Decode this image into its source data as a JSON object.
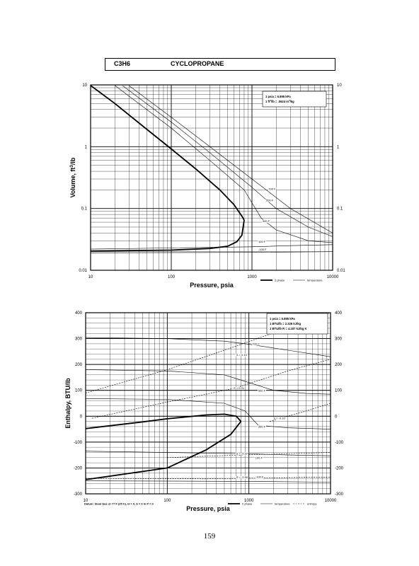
{
  "header": {
    "formula": "C3H6",
    "name": "CYCLOPROPANE"
  },
  "page_number": "159",
  "chart_data": [
    {
      "type": "line",
      "x_scale": "log",
      "y_scale": "log",
      "xlim": [
        10,
        10000
      ],
      "ylim": [
        0.01,
        10
      ],
      "xlabel": "Pressure,  psia",
      "ylabel": "Volume, ft^3/lb",
      "x_ticks": [
        {
          "value": 10,
          "label": "10"
        },
        {
          "value": 100,
          "label": "100"
        },
        {
          "value": 1000,
          "label": "1000"
        },
        {
          "value": 10000,
          "label": "10000"
        }
      ],
      "y_ticks": [
        {
          "value": 10,
          "label": "10"
        },
        {
          "value": 1,
          "label": "1"
        },
        {
          "value": 0.1,
          "label": "0.1"
        },
        {
          "value": 0.01,
          "label": "0.01"
        }
      ],
      "grid": true,
      "conversion_box": [
        "1 psia  =  6.895 kPa",
        "1 ft^3/lb  =  .0624 m^3/kg"
      ],
      "legend": {
        "position": "below-right",
        "items": [
          "2 phase",
          "temperature"
        ]
      },
      "two_phase": {
        "vapor": [
          [
            10,
            9.8
          ],
          [
            20,
            5.0
          ],
          [
            50,
            1.9
          ],
          [
            100,
            0.92
          ],
          [
            200,
            0.44
          ],
          [
            400,
            0.2
          ],
          [
            600,
            0.115
          ],
          [
            750,
            0.075
          ],
          [
            800,
            0.065
          ]
        ],
        "liquid": [
          [
            10,
            0.0205
          ],
          [
            100,
            0.0212
          ],
          [
            300,
            0.0225
          ],
          [
            500,
            0.0245
          ],
          [
            650,
            0.029
          ],
          [
            750,
            0.037
          ],
          [
            800,
            0.065
          ]
        ]
      },
      "isotherms": [
        {
          "label": "700 F",
          "label_at": [
            1600,
            0.2
          ],
          "points": [
            [
              30,
              9.7
            ],
            [
              100,
              3.0
            ],
            [
              300,
              1.0
            ],
            [
              1000,
              0.3
            ],
            [
              3000,
              0.1
            ],
            [
              10000,
              0.04
            ]
          ]
        },
        {
          "label": "500 F",
          "label_at": [
            1500,
            0.13
          ],
          "points": [
            [
              25,
              9.7
            ],
            [
              100,
              2.5
            ],
            [
              300,
              0.8
            ],
            [
              1000,
              0.22
            ],
            [
              2000,
              0.1
            ],
            [
              5000,
              0.05
            ],
            [
              10000,
              0.035
            ]
          ]
        },
        {
          "label": "300 F",
          "label_at": [
            1350,
            0.06
          ],
          "points": [
            [
              20,
              9.8
            ],
            [
              100,
              2.0
            ],
            [
              300,
              0.6
            ],
            [
              800,
              0.2
            ],
            [
              1300,
              0.07
            ],
            [
              2000,
              0.045
            ],
            [
              5000,
              0.03
            ],
            [
              10000,
              0.028
            ]
          ]
        },
        {
          "label": "100 F",
          "label_at": [
            1200,
            0.028
          ],
          "points": [
            [
              10,
              0.022
            ],
            [
              1000,
              0.024
            ],
            [
              3000,
              0.025
            ],
            [
              10000,
              0.026
            ]
          ]
        },
        {
          "label": "-100 F",
          "label_at": [
            1200,
            0.021
          ],
          "points": [
            [
              10,
              0.0192
            ],
            [
              1000,
              0.0195
            ],
            [
              10000,
              0.02
            ]
          ]
        }
      ]
    },
    {
      "type": "line",
      "x_scale": "log",
      "y_scale": "linear",
      "xlim": [
        10,
        10000
      ],
      "ylim": [
        -300,
        400
      ],
      "xlabel": "Pressure,  psia",
      "ylabel": "Enthalpy, BTU/lb",
      "x_ticks": [
        {
          "value": 10,
          "label": "10"
        },
        {
          "value": 100,
          "label": "100"
        },
        {
          "value": 1000,
          "label": "1000"
        },
        {
          "value": 10000,
          "label": "10000"
        }
      ],
      "y_ticks": [
        {
          "value": 400,
          "label": "400"
        },
        {
          "value": 300,
          "label": "300"
        },
        {
          "value": 200,
          "label": "200"
        },
        {
          "value": 100,
          "label": "100"
        },
        {
          "value": 0,
          "label": "0"
        },
        {
          "value": -100,
          "label": "-100"
        },
        {
          "value": -200,
          "label": "-200"
        },
        {
          "value": -300,
          "label": "-300"
        }
      ],
      "grid": true,
      "conversion_box": [
        "1 psia  =  6.895 kPa",
        "1 BTU/lb  =  2.326 kJ/kg",
        "1 BTU/lb R  =  4.187 kJ/kg K"
      ],
      "legend": {
        "position": "below-right",
        "items": [
          "2 phase",
          "temperature",
          "entropy"
        ]
      },
      "footnote": "Datum: Ideal Gas @ 77 F (25 C),  H = 0,  S = 0 in P = 0",
      "two_phase": {
        "vapor": [
          [
            10,
            -48
          ],
          [
            50,
            -22
          ],
          [
            100,
            -10
          ],
          [
            300,
            5
          ],
          [
            500,
            8
          ],
          [
            700,
            0
          ],
          [
            800,
            -20
          ]
        ],
        "liquid": [
          [
            10,
            -245
          ],
          [
            100,
            -200
          ],
          [
            300,
            -130
          ],
          [
            600,
            -70
          ],
          [
            800,
            -20
          ]
        ]
      },
      "isotherms": [
        {
          "label": "700 F",
          "label_at": [
            1100,
            275
          ],
          "points": [
            [
              10,
              304
            ],
            [
              100,
              300
            ],
            [
              500,
              290
            ],
            [
              1000,
              278
            ],
            [
              3000,
              255
            ],
            [
              10000,
              230
            ]
          ]
        },
        {
          "label": "500 F",
          "label_at": [
            1300,
            95
          ],
          "points": [
            [
              10,
              180
            ],
            [
              100,
              175
            ],
            [
              500,
              160
            ],
            [
              1000,
              130
            ],
            [
              2000,
              100
            ],
            [
              5000,
              88
            ],
            [
              10000,
              85
            ]
          ]
        },
        {
          "label": "300 F",
          "label_at": [
            1300,
            -45
          ],
          "points": [
            [
              10,
              68
            ],
            [
              100,
              65
            ],
            [
              500,
              50
            ],
            [
              900,
              20
            ],
            [
              1300,
              -35
            ],
            [
              3000,
              -45
            ],
            [
              10000,
              -50
            ]
          ]
        },
        {
          "label": "100 F",
          "label_at": [
            1200,
            -165
          ],
          "points": [
            [
              10,
              -135
            ],
            [
              1000,
              -145
            ],
            [
              3000,
              -150
            ],
            [
              10000,
              -153
            ]
          ]
        },
        {
          "label": "-100 F",
          "label_at": [
            1200,
            -238
          ],
          "points": [
            [
              10,
              -250
            ],
            [
              1000,
              -252
            ],
            [
              10000,
              -255
            ]
          ]
        }
      ],
      "isentropes": [
        {
          "label": "S = 0.10",
          "label_at": [
            700,
            233
          ],
          "points": [
            [
              10,
              90
            ],
            [
              100,
              180
            ],
            [
              500,
              255
            ],
            [
              10000,
              400
            ]
          ]
        },
        {
          "label": "S = 0.01",
          "label_at": [
            650,
            105
          ],
          "points": [
            [
              12,
              -8
            ],
            [
              100,
              55
            ],
            [
              300,
              85
            ],
            [
              700,
              110
            ],
            [
              3000,
              175
            ],
            [
              10000,
              220
            ]
          ]
        },
        {
          "label": "S = -0.10",
          "label_at": [
            2000,
            -12
          ],
          "points": [
            [
              1800,
              -20
            ],
            [
              5000,
              20
            ],
            [
              10000,
              50
            ]
          ]
        },
        {
          "label": "S = -0.37",
          "label_at": [
            700,
            -148
          ],
          "points": [
            [
              100,
              -160
            ],
            [
              500,
              -152
            ],
            [
              10000,
              -140
            ]
          ]
        },
        {
          "label": "S = -0.50",
          "label_at": [
            700,
            -240
          ],
          "points": [
            [
              10,
              -240
            ],
            [
              300,
              -242
            ],
            [
              10000,
              -235
            ]
          ]
        }
      ]
    }
  ]
}
